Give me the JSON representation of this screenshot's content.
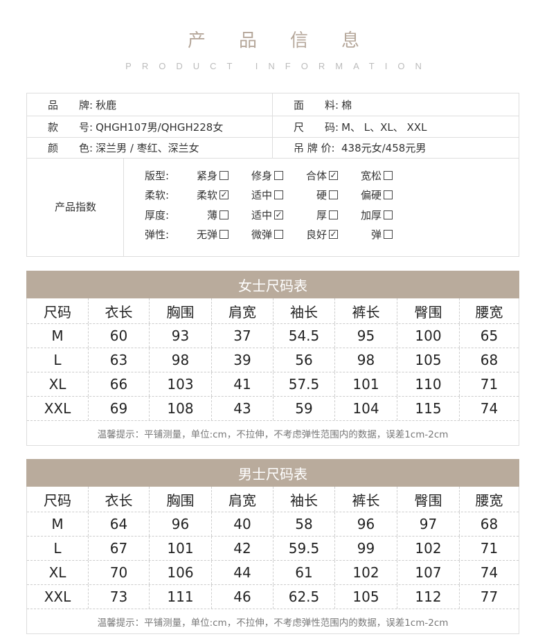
{
  "header": {
    "title": "产品信息",
    "subtitle": "PRODUCT INFORMATION"
  },
  "info": {
    "rows": [
      [
        {
          "label": "品　　牌:",
          "value": "秋鹿"
        },
        {
          "label": "面　　料:",
          "value": "棉"
        }
      ],
      [
        {
          "label": "款　　号:",
          "value": "QHGH107男/QHGH228女"
        },
        {
          "label": "尺　　码:",
          "value": "M、 L、XL、 XXL"
        }
      ],
      [
        {
          "label": "颜　　色:",
          "value": "深兰男 / 枣红、深兰女"
        },
        {
          "label": "吊 牌 价:",
          "value": "438元女/458元男"
        }
      ]
    ],
    "index_label": "产品指数",
    "index": [
      {
        "name": "版型:",
        "options": [
          {
            "label": "紧身",
            "checked": false
          },
          {
            "label": "修身",
            "checked": false
          },
          {
            "label": "合体",
            "checked": true
          },
          {
            "label": "宽松",
            "checked": false
          }
        ]
      },
      {
        "name": "柔软:",
        "options": [
          {
            "label": "柔软",
            "checked": true
          },
          {
            "label": "适中",
            "checked": false
          },
          {
            "label": "硬",
            "checked": false
          },
          {
            "label": "偏硬",
            "checked": false
          }
        ]
      },
      {
        "name": "厚度:",
        "options": [
          {
            "label": "薄",
            "checked": false
          },
          {
            "label": "适中",
            "checked": true
          },
          {
            "label": "厚",
            "checked": false
          },
          {
            "label": "加厚",
            "checked": false
          }
        ]
      },
      {
        "name": "弹性:",
        "options": [
          {
            "label": "无弹",
            "checked": false
          },
          {
            "label": "微弹",
            "checked": false
          },
          {
            "label": "良好",
            "checked": true
          },
          {
            "label": "弹",
            "checked": false
          }
        ]
      }
    ]
  },
  "women": {
    "title": "女士尺码表",
    "headers": [
      "尺码",
      "衣长",
      "胸围",
      "肩宽",
      "袖长",
      "裤长",
      "臀围",
      "腰宽"
    ],
    "rows": [
      [
        "M",
        "60",
        "93",
        "37",
        "54.5",
        "95",
        "100",
        "65"
      ],
      [
        "L",
        "63",
        "98",
        "39",
        "56",
        "98",
        "105",
        "68"
      ],
      [
        "XL",
        "66",
        "103",
        "41",
        "57.5",
        "101",
        "110",
        "71"
      ],
      [
        "XXL",
        "69",
        "108",
        "43",
        "59",
        "104",
        "115",
        "74"
      ]
    ],
    "note": "温馨提示：平铺测量，单位:cm，不拉伸，不考虑弹性范围内的数据，误差1cm-2cm"
  },
  "men": {
    "title": "男士尺码表",
    "headers": [
      "尺码",
      "衣长",
      "胸围",
      "肩宽",
      "袖长",
      "裤长",
      "臀围",
      "腰宽"
    ],
    "rows": [
      [
        "M",
        "64",
        "96",
        "40",
        "58",
        "96",
        "97",
        "68"
      ],
      [
        "L",
        "67",
        "101",
        "42",
        "59.5",
        "99",
        "102",
        "71"
      ],
      [
        "XL",
        "70",
        "106",
        "44",
        "61",
        "102",
        "107",
        "74"
      ],
      [
        "XXL",
        "73",
        "111",
        "46",
        "62.5",
        "105",
        "112",
        "77"
      ]
    ],
    "note": "温馨提示：平铺测量，单位:cm，不拉伸，不考虑弹性范围内的数据，误差1cm-2cm"
  },
  "colors": {
    "accent": "#b9ab9c",
    "title": "#b5a79a"
  }
}
